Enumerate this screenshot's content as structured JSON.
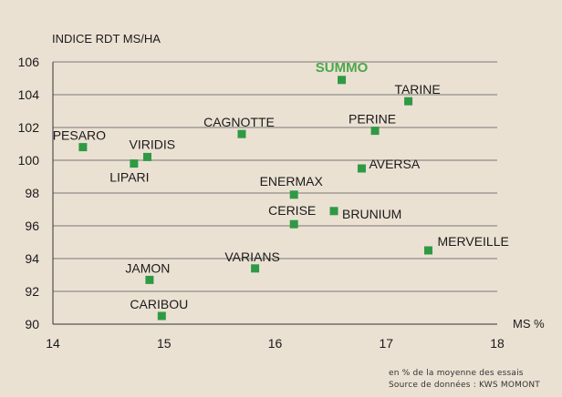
{
  "chart_data": {
    "type": "scatter",
    "ylabel": "INDICE RDT MS/HA",
    "xlabel": "MS %",
    "xlim": [
      14,
      18
    ],
    "ylim": [
      90,
      106
    ],
    "x_ticks": [
      14,
      15,
      16,
      17,
      18
    ],
    "y_ticks": [
      90,
      92,
      94,
      96,
      98,
      100,
      102,
      104,
      106
    ],
    "grid": "horizontal",
    "marker_color": "#2f9a44",
    "highlight_color": "#4aa84a",
    "points": [
      {
        "label": "SUMMO",
        "x": 16.6,
        "y": 104.9,
        "highlight": true
      },
      {
        "label": "TARINE",
        "x": 17.2,
        "y": 103.6
      },
      {
        "label": "PERINE",
        "x": 16.9,
        "y": 101.8
      },
      {
        "label": "CAGNOTTE",
        "x": 15.7,
        "y": 101.6
      },
      {
        "label": "PESARO",
        "x": 14.27,
        "y": 100.8
      },
      {
        "label": "VIRIDIS",
        "x": 14.85,
        "y": 100.2
      },
      {
        "label": "LIPARI",
        "x": 14.73,
        "y": 99.8
      },
      {
        "label": "AVERSA",
        "x": 16.78,
        "y": 99.5
      },
      {
        "label": "ENERMAX",
        "x": 16.17,
        "y": 97.9
      },
      {
        "label": "BRUNIUM",
        "x": 16.53,
        "y": 96.9
      },
      {
        "label": "CERISE",
        "x": 16.17,
        "y": 96.1
      },
      {
        "label": "MERVEILLE",
        "x": 17.38,
        "y": 94.5
      },
      {
        "label": "VARIANS",
        "x": 15.82,
        "y": 93.4
      },
      {
        "label": "JAMON",
        "x": 14.87,
        "y": 92.7
      },
      {
        "label": "CARIBOU",
        "x": 14.98,
        "y": 90.5
      }
    ]
  },
  "notes": {
    "line1": "en % de la moyenne des essais",
    "line2": "Source de données : KWS MOMONT"
  }
}
